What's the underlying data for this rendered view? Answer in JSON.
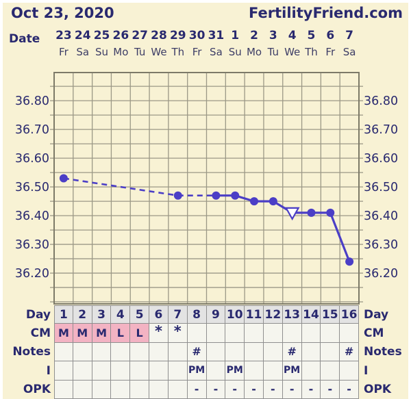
{
  "header": {
    "date": "Oct 23, 2020",
    "site": "FertilityFriend.com"
  },
  "date_axis": {
    "label": "Date",
    "dates": [
      "23",
      "24",
      "25",
      "26",
      "27",
      "28",
      "29",
      "30",
      "31",
      "1",
      "2",
      "3",
      "4",
      "5",
      "6",
      "7"
    ],
    "weekdays": [
      "Fr",
      "Sa",
      "Su",
      "Mo",
      "Tu",
      "We",
      "Th",
      "Fr",
      "Sa",
      "Su",
      "Mo",
      "Tu",
      "We",
      "Th",
      "Fr",
      "Sa"
    ]
  },
  "chart_data": {
    "type": "line",
    "title": "Basal body temperature chart (Celsius)",
    "x_days": [
      1,
      2,
      3,
      4,
      5,
      6,
      7,
      8,
      9,
      10,
      11,
      12,
      13,
      14,
      15,
      16
    ],
    "series": [
      {
        "name": "temperature_c",
        "values": [
          36.53,
          null,
          null,
          null,
          null,
          null,
          36.47,
          null,
          36.47,
          36.47,
          36.45,
          36.45,
          36.41,
          36.41,
          36.41,
          36.24
        ]
      }
    ],
    "marker_styles": {
      "13": "open-triangle-down"
    },
    "dashed_segments": [
      [
        1,
        7
      ],
      [
        7,
        9
      ]
    ],
    "ylim": [
      36.093,
      36.898
    ],
    "ytick_labels": [
      "36.80",
      "36.70",
      "36.60",
      "36.50",
      "36.40",
      "36.30",
      "36.20"
    ],
    "ytick_minor_step": 0.05,
    "grid": true,
    "legend": "none",
    "y_axis_sides": "both"
  },
  "table": {
    "rows": [
      {
        "label": "Day",
        "style": "day",
        "cells": [
          "1",
          "2",
          "3",
          "4",
          "5",
          "6",
          "7",
          "8",
          "9",
          "10",
          "11",
          "12",
          "13",
          "14",
          "15",
          "16"
        ]
      },
      {
        "label": "CM",
        "style": "cm",
        "pink_cols": [
          1,
          2,
          3,
          4,
          5
        ],
        "cells": [
          "M",
          "M",
          "M",
          "L",
          "L",
          "*",
          "*",
          "",
          "",
          "",
          "",
          "",
          "",
          "",
          "",
          ""
        ]
      },
      {
        "label": "Notes",
        "style": "notes",
        "cells": [
          "",
          "",
          "",
          "",
          "",
          "",
          "",
          "#",
          "",
          "",
          "",
          "",
          "#",
          "",
          "",
          "#"
        ]
      },
      {
        "label": "I",
        "style": "i",
        "cells": [
          "",
          "",
          "",
          "",
          "",
          "",
          "",
          "PM",
          "",
          "PM",
          "",
          "",
          "PM",
          "",
          "",
          ""
        ]
      },
      {
        "label": "OPK",
        "style": "opk",
        "cells": [
          "",
          "",
          "",
          "",
          "",
          "",
          "",
          "-",
          "-",
          "-",
          "-",
          "-",
          "-",
          "-",
          "-",
          "-"
        ]
      }
    ]
  },
  "colors": {
    "navy_text": "#29296f",
    "weekday_text": "#3d3d66",
    "background_cream": "#f8f2d4",
    "grid_line": "#9b9886",
    "plot_border": "#7d7a68",
    "temp_line": "#4b3ec6",
    "menses_pink": "#f3b3c3",
    "day_row_bg": "#e3e3e3",
    "cell_bg": "#f5f5ee",
    "table_border": "#8f8f8f",
    "page_white": "#ffffff"
  }
}
